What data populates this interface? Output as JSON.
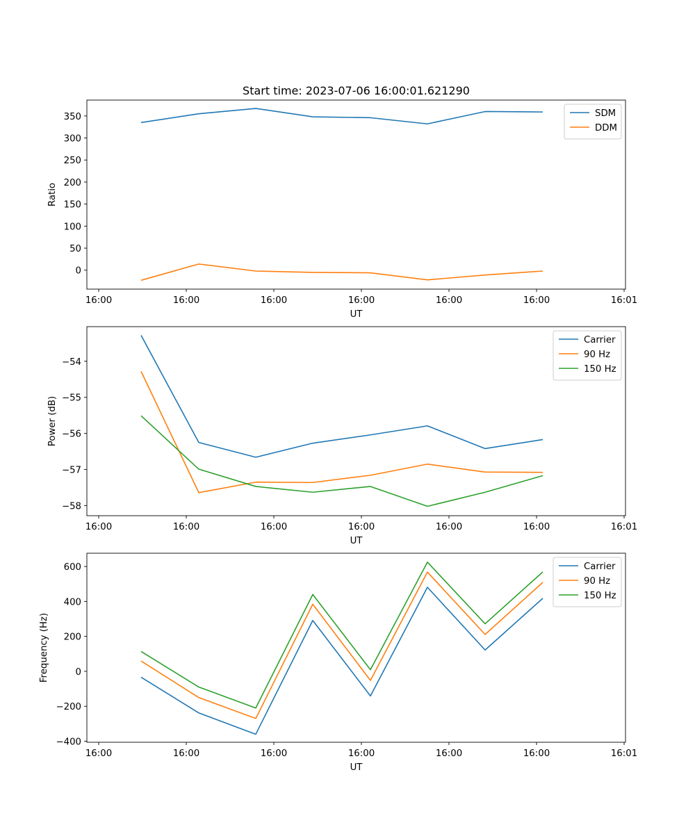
{
  "chart_data": [
    {
      "type": "line",
      "title": "Start time: 2023-07-06 16:00:01.621290",
      "xlabel": "UT",
      "ylabel": "Ratio",
      "xticks": [
        "16:00",
        "16:00",
        "16:00",
        "16:00",
        "16:00",
        "16:00",
        "16:01"
      ],
      "yticks": [
        0,
        50,
        100,
        150,
        200,
        250,
        300,
        350
      ],
      "ylim": [
        -43,
        386
      ],
      "legend": "upper right",
      "series": [
        {
          "name": "SDM",
          "color": "#1f77b4",
          "values": [
            335,
            355,
            367,
            348,
            346,
            332,
            360,
            359
          ]
        },
        {
          "name": "DDM",
          "color": "#ff7f0e",
          "values": [
            -23,
            14,
            -2,
            -5,
            -6,
            -22,
            -11,
            -2
          ]
        }
      ]
    },
    {
      "type": "line",
      "title": "",
      "xlabel": "UT",
      "ylabel": "Power (dB)",
      "xticks": [
        "16:00",
        "16:00",
        "16:00",
        "16:00",
        "16:00",
        "16:00",
        "16:01"
      ],
      "yticks": [
        -58,
        -57,
        -56,
        -55,
        -54
      ],
      "ylim": [
        -58.28,
        -53.04
      ],
      "legend": "upper right",
      "series": [
        {
          "name": "Carrier",
          "color": "#1f77b4",
          "values": [
            -53.28,
            -56.25,
            -56.66,
            -56.27,
            -56.04,
            -55.79,
            -56.42,
            -56.17
          ]
        },
        {
          "name": "90 Hz",
          "color": "#ff7f0e",
          "values": [
            -54.28,
            -57.64,
            -57.35,
            -57.36,
            -57.16,
            -56.85,
            -57.07,
            -57.08
          ]
        },
        {
          "name": "150 Hz",
          "color": "#2ca02c",
          "values": [
            -55.51,
            -56.99,
            -57.47,
            -57.63,
            -57.47,
            -58.02,
            -57.63,
            -57.17
          ]
        }
      ]
    },
    {
      "type": "line",
      "title": "",
      "xlabel": "UT",
      "ylabel": "Frequency (Hz)",
      "xticks": [
        "16:00",
        "16:00",
        "16:00",
        "16:00",
        "16:00",
        "16:00",
        "16:01"
      ],
      "yticks": [
        -400,
        -200,
        0,
        200,
        400,
        600
      ],
      "ylim": [
        -406,
        676
      ],
      "legend": "upper right",
      "series": [
        {
          "name": "Carrier",
          "color": "#1f77b4",
          "values": [
            -34,
            -238,
            -360,
            291,
            -141,
            481,
            122,
            418
          ]
        },
        {
          "name": "90 Hz",
          "color": "#ff7f0e",
          "values": [
            59,
            -150,
            -270,
            384,
            -52,
            568,
            211,
            509
          ]
        },
        {
          "name": "150 Hz",
          "color": "#2ca02c",
          "values": [
            114,
            -90,
            -210,
            440,
            9,
            625,
            272,
            569
          ]
        }
      ]
    }
  ]
}
